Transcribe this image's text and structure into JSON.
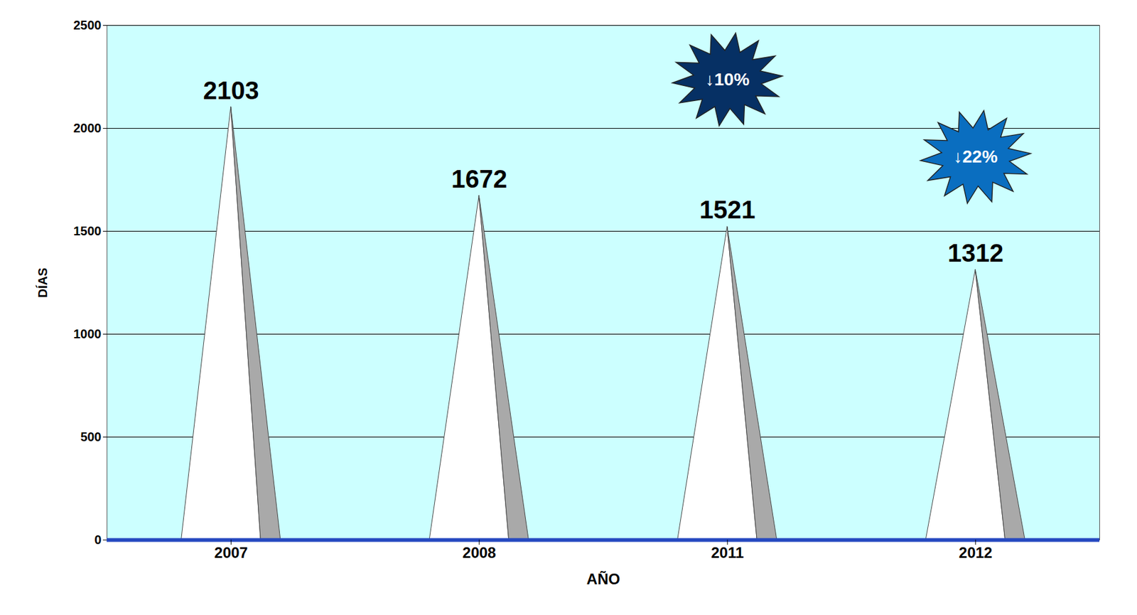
{
  "chart_data": {
    "type": "bar",
    "categories": [
      "2007",
      "2008",
      "2011",
      "2012"
    ],
    "values": [
      2103,
      1672,
      1521,
      1312
    ],
    "color": "#ffffff",
    "xlabel": "AÑO",
    "ylabel": "DÍAS",
    "ylim": [
      0,
      2500
    ],
    "yticks": [
      0,
      500,
      1000,
      1500,
      2000,
      2500
    ],
    "grid": true,
    "data_labels": true,
    "annotations": [
      {
        "category": "2011",
        "text": "↓10%"
      },
      {
        "category": "2012",
        "text": "↓22%"
      }
    ]
  }
}
